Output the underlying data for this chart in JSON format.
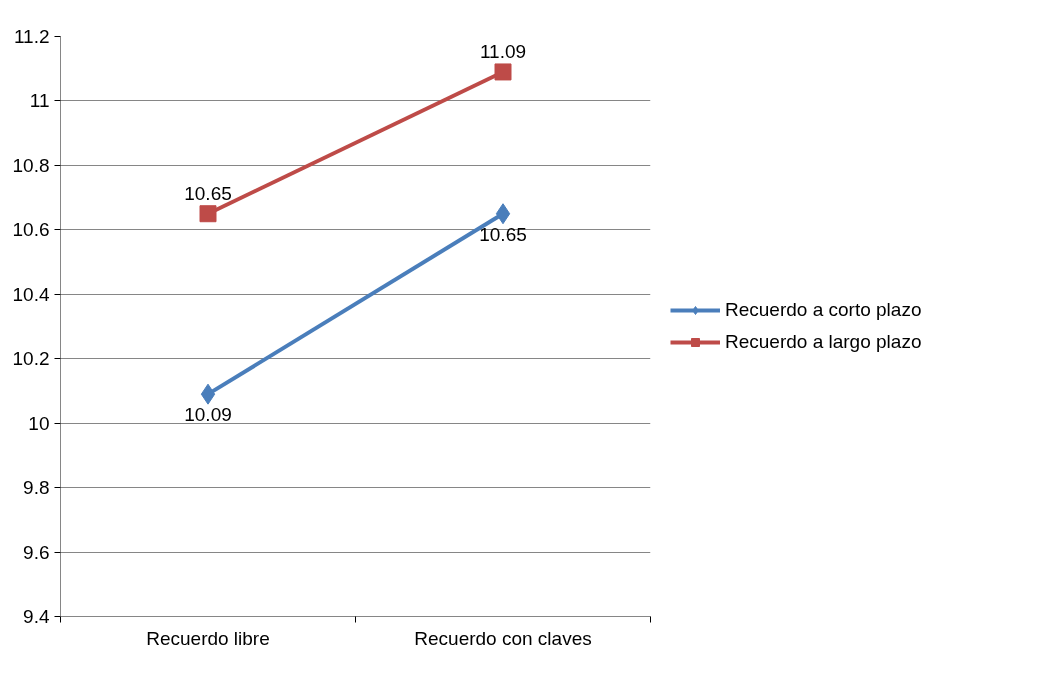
{
  "chart_data": {
    "type": "line",
    "categories": [
      "Recuerdo libre",
      "Recuerdo con claves"
    ],
    "series": [
      {
        "name": "Recuerdo a corto plazo",
        "color": "#4a7ebb",
        "marker": "diamond",
        "values": [
          10.09,
          10.65
        ]
      },
      {
        "name": "Recuerdo a largo plazo",
        "color": "#be4b48",
        "marker": "square",
        "values": [
          10.65,
          11.09
        ]
      }
    ],
    "ylim": [
      9.4,
      11.2
    ],
    "yticks": [
      9.4,
      9.6,
      9.8,
      10,
      10.2,
      10.4,
      10.6,
      10.8,
      11,
      11.2
    ],
    "grid": "y",
    "legend": "right",
    "data_labels": true
  }
}
